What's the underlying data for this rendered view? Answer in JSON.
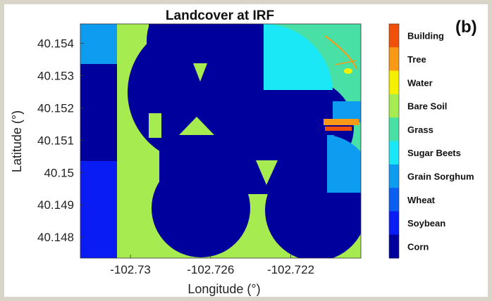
{
  "chart_data": {
    "type": "heatmap",
    "title": "Landcover at IRF",
    "panel_label": "(b)",
    "xlabel": "Longitude (°)",
    "ylabel": "Latitude (°)",
    "xlim": [
      -102.7325,
      -102.7185
    ],
    "ylim": [
      40.14735,
      40.1546
    ],
    "x_ticks": [
      {
        "value": -102.73,
        "label": "-102.73"
      },
      {
        "value": -102.726,
        "label": "-102.726"
      },
      {
        "value": -102.722,
        "label": "-102.722"
      }
    ],
    "y_ticks": [
      {
        "value": 40.154,
        "label": "40.154"
      },
      {
        "value": 40.153,
        "label": "40.153"
      },
      {
        "value": 40.152,
        "label": "40.152"
      },
      {
        "value": 40.151,
        "label": "40.151"
      },
      {
        "value": 40.15,
        "label": "40.15"
      },
      {
        "value": 40.149,
        "label": "40.149"
      },
      {
        "value": 40.148,
        "label": "40.148"
      }
    ],
    "legend": [
      {
        "label": "Building",
        "color": "#f0500a"
      },
      {
        "label": "Tree",
        "color": "#f89a18"
      },
      {
        "label": "Water",
        "color": "#f5f000"
      },
      {
        "label": "Bare Soil",
        "color": "#a6ec50"
      },
      {
        "label": "Grass",
        "color": "#48e0a4"
      },
      {
        "label": "Sugar Beets",
        "color": "#1ae8f6"
      },
      {
        "label": "Grain Sorghum",
        "color": "#0e9cf0"
      },
      {
        "label": "Wheat",
        "color": "#0a5ef0"
      },
      {
        "label": "Soybean",
        "color": "#0a1cf4"
      },
      {
        "label": "Corn",
        "color": "#00009c"
      }
    ]
  }
}
